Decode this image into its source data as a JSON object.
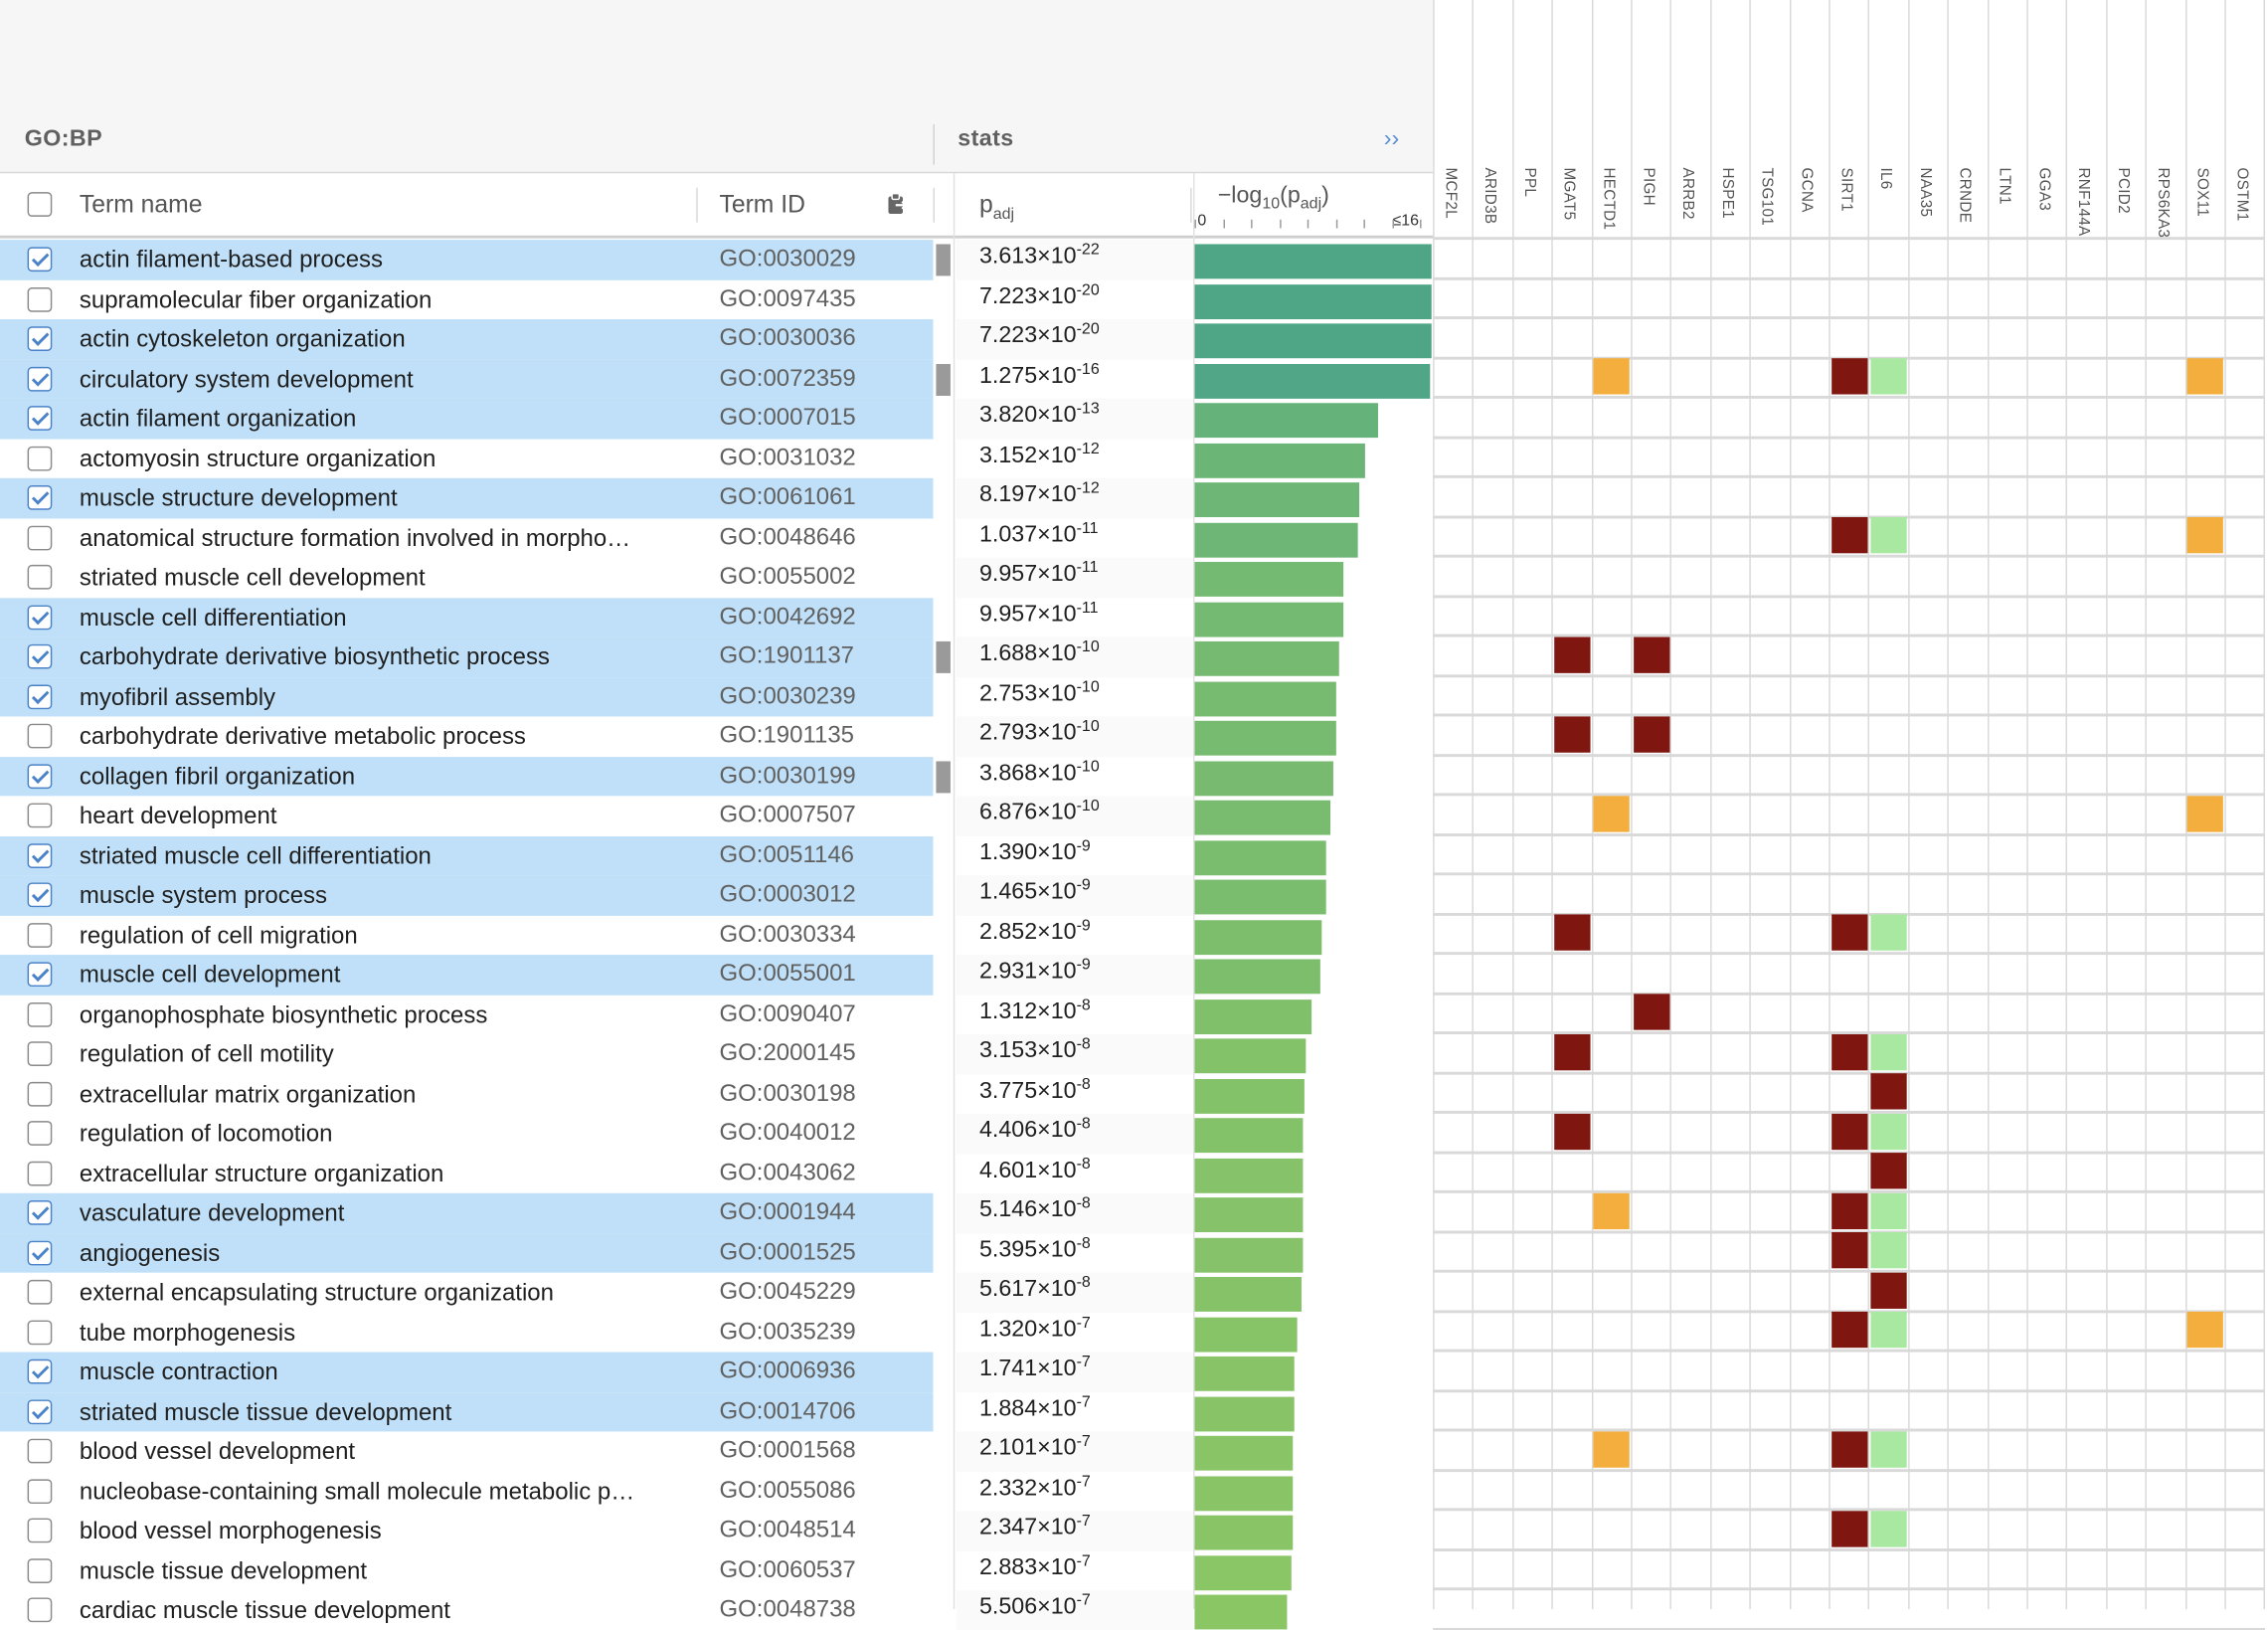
{
  "headers": {
    "group_title": "GO:BP",
    "stats_title": "stats",
    "expand_glyph": "››",
    "term_name": "Term name",
    "term_id": "Term ID",
    "padj_base": "p",
    "padj_sub": "adj",
    "log_prefix": "−log",
    "log_sub": "10",
    "log_mid": "(p",
    "log_sub2": "adj",
    "log_suffix": ")",
    "axis_min": "0",
    "axis_max": "≤16"
  },
  "colors": {
    "selected_row": "#bfe0f8",
    "dark_red": "#7f1710",
    "orange": "#f3ae3e",
    "light_green": "#a8e8a0"
  },
  "genes": [
    "MCF2L",
    "ARID3B",
    "PPL",
    "MGAT5",
    "HECTD1",
    "PIGH",
    "ARRB2",
    "HSPE1",
    "TSG101",
    "GCNA",
    "SIRT1",
    "IL6",
    "NAA35",
    "CRNDE",
    "LTN1",
    "GGA3",
    "RNF144A",
    "PCID2",
    "RPS6KA3",
    "SOX11",
    "OSTM1"
  ],
  "rows": [
    {
      "term": "actin filament-based process",
      "id": "GO:0030029",
      "mant": "3.613×10",
      "exp": "-22",
      "logp": 21.44,
      "sel": true,
      "marker": true,
      "cells": []
    },
    {
      "term": "supramolecular fiber organization",
      "id": "GO:0097435",
      "mant": "7.223×10",
      "exp": "-20",
      "logp": 19.14,
      "sel": false,
      "marker": false,
      "cells": []
    },
    {
      "term": "actin cytoskeleton organization",
      "id": "GO:0030036",
      "mant": "7.223×10",
      "exp": "-20",
      "logp": 19.14,
      "sel": true,
      "marker": false,
      "cells": []
    },
    {
      "term": "circulatory system development",
      "id": "GO:0072359",
      "mant": "1.275×10",
      "exp": "-16",
      "logp": 15.89,
      "sel": true,
      "marker": true,
      "cells": [
        [
          4,
          "o"
        ],
        [
          10,
          "r"
        ],
        [
          11,
          "g"
        ],
        [
          19,
          "o"
        ]
      ]
    },
    {
      "term": "actin filament organization",
      "id": "GO:0007015",
      "mant": "3.820×10",
      "exp": "-13",
      "logp": 12.42,
      "sel": true,
      "marker": false,
      "cells": []
    },
    {
      "term": "actomyosin structure organization",
      "id": "GO:0031032",
      "mant": "3.152×10",
      "exp": "-12",
      "logp": 11.5,
      "sel": false,
      "marker": false,
      "cells": []
    },
    {
      "term": "muscle structure development",
      "id": "GO:0061061",
      "mant": "8.197×10",
      "exp": "-12",
      "logp": 11.09,
      "sel": true,
      "marker": false,
      "cells": []
    },
    {
      "term": "anatomical structure formation involved in morpho…",
      "id": "GO:0048646",
      "mant": "1.037×10",
      "exp": "-11",
      "logp": 10.98,
      "sel": false,
      "marker": false,
      "cells": [
        [
          10,
          "r"
        ],
        [
          11,
          "g"
        ],
        [
          19,
          "o"
        ]
      ]
    },
    {
      "term": "striated muscle cell development",
      "id": "GO:0055002",
      "mant": "9.957×10",
      "exp": "-11",
      "logp": 10.0,
      "sel": false,
      "marker": false,
      "cells": []
    },
    {
      "term": "muscle cell differentiation",
      "id": "GO:0042692",
      "mant": "9.957×10",
      "exp": "-11",
      "logp": 10.0,
      "sel": true,
      "marker": false,
      "cells": []
    },
    {
      "term": "carbohydrate derivative biosynthetic process",
      "id": "GO:1901137",
      "mant": "1.688×10",
      "exp": "-10",
      "logp": 9.77,
      "sel": true,
      "marker": true,
      "cells": [
        [
          3,
          "r"
        ],
        [
          5,
          "r"
        ]
      ]
    },
    {
      "term": "myofibril assembly",
      "id": "GO:0030239",
      "mant": "2.753×10",
      "exp": "-10",
      "logp": 9.56,
      "sel": true,
      "marker": false,
      "cells": []
    },
    {
      "term": "carbohydrate derivative metabolic process",
      "id": "GO:1901135",
      "mant": "2.793×10",
      "exp": "-10",
      "logp": 9.55,
      "sel": false,
      "marker": false,
      "cells": [
        [
          3,
          "r"
        ],
        [
          5,
          "r"
        ]
      ]
    },
    {
      "term": "collagen fibril organization",
      "id": "GO:0030199",
      "mant": "3.868×10",
      "exp": "-10",
      "logp": 9.41,
      "sel": true,
      "marker": true,
      "cells": []
    },
    {
      "term": "heart development",
      "id": "GO:0007507",
      "mant": "6.876×10",
      "exp": "-10",
      "logp": 9.16,
      "sel": false,
      "marker": false,
      "cells": [
        [
          4,
          "o"
        ],
        [
          19,
          "o"
        ]
      ]
    },
    {
      "term": "striated muscle cell differentiation",
      "id": "GO:0051146",
      "mant": "1.390×10",
      "exp": "-9",
      "logp": 8.86,
      "sel": true,
      "marker": false,
      "cells": []
    },
    {
      "term": "muscle system process",
      "id": "GO:0003012",
      "mant": "1.465×10",
      "exp": "-9",
      "logp": 8.83,
      "sel": true,
      "marker": false,
      "cells": []
    },
    {
      "term": "regulation of cell migration",
      "id": "GO:0030334",
      "mant": "2.852×10",
      "exp": "-9",
      "logp": 8.54,
      "sel": false,
      "marker": false,
      "cells": [
        [
          3,
          "r"
        ],
        [
          10,
          "r"
        ],
        [
          11,
          "g"
        ]
      ]
    },
    {
      "term": "muscle cell development",
      "id": "GO:0055001",
      "mant": "2.931×10",
      "exp": "-9",
      "logp": 8.53,
      "sel": true,
      "marker": false,
      "cells": []
    },
    {
      "term": "organophosphate biosynthetic process",
      "id": "GO:0090407",
      "mant": "1.312×10",
      "exp": "-8",
      "logp": 7.88,
      "sel": false,
      "marker": false,
      "cells": [
        [
          5,
          "r"
        ]
      ]
    },
    {
      "term": "regulation of cell motility",
      "id": "GO:2000145",
      "mant": "3.153×10",
      "exp": "-8",
      "logp": 7.5,
      "sel": false,
      "marker": false,
      "cells": [
        [
          3,
          "r"
        ],
        [
          10,
          "r"
        ],
        [
          11,
          "g"
        ]
      ]
    },
    {
      "term": "extracellular matrix organization",
      "id": "GO:0030198",
      "mant": "3.775×10",
      "exp": "-8",
      "logp": 7.42,
      "sel": false,
      "marker": false,
      "cells": [
        [
          11,
          "r"
        ]
      ]
    },
    {
      "term": "regulation of locomotion",
      "id": "GO:0040012",
      "mant": "4.406×10",
      "exp": "-8",
      "logp": 7.36,
      "sel": false,
      "marker": false,
      "cells": [
        [
          3,
          "r"
        ],
        [
          10,
          "r"
        ],
        [
          11,
          "g"
        ]
      ]
    },
    {
      "term": "extracellular structure organization",
      "id": "GO:0043062",
      "mant": "4.601×10",
      "exp": "-8",
      "logp": 7.34,
      "sel": false,
      "marker": false,
      "cells": [
        [
          11,
          "r"
        ]
      ]
    },
    {
      "term": "vasculature development",
      "id": "GO:0001944",
      "mant": "5.146×10",
      "exp": "-8",
      "logp": 7.29,
      "sel": true,
      "marker": false,
      "cells": [
        [
          4,
          "o"
        ],
        [
          10,
          "r"
        ],
        [
          11,
          "g"
        ]
      ]
    },
    {
      "term": "angiogenesis",
      "id": "GO:0001525",
      "mant": "5.395×10",
      "exp": "-8",
      "logp": 7.27,
      "sel": true,
      "marker": false,
      "cells": [
        [
          10,
          "r"
        ],
        [
          11,
          "g"
        ]
      ]
    },
    {
      "term": "external encapsulating structure organization",
      "id": "GO:0045229",
      "mant": "5.617×10",
      "exp": "-8",
      "logp": 7.25,
      "sel": false,
      "marker": false,
      "cells": [
        [
          11,
          "r"
        ]
      ]
    },
    {
      "term": "tube morphogenesis",
      "id": "GO:0035239",
      "mant": "1.320×10",
      "exp": "-7",
      "logp": 6.88,
      "sel": false,
      "marker": false,
      "cells": [
        [
          10,
          "r"
        ],
        [
          11,
          "g"
        ],
        [
          19,
          "o"
        ]
      ]
    },
    {
      "term": "muscle contraction",
      "id": "GO:0006936",
      "mant": "1.741×10",
      "exp": "-7",
      "logp": 6.76,
      "sel": true,
      "marker": false,
      "cells": []
    },
    {
      "term": "striated muscle tissue development",
      "id": "GO:0014706",
      "mant": "1.884×10",
      "exp": "-7",
      "logp": 6.72,
      "sel": true,
      "marker": false,
      "cells": []
    },
    {
      "term": "blood vessel development",
      "id": "GO:0001568",
      "mant": "2.101×10",
      "exp": "-7",
      "logp": 6.68,
      "sel": false,
      "marker": false,
      "cells": [
        [
          4,
          "o"
        ],
        [
          10,
          "r"
        ],
        [
          11,
          "g"
        ]
      ]
    },
    {
      "term": "nucleobase-containing small molecule metabolic p…",
      "id": "GO:0055086",
      "mant": "2.332×10",
      "exp": "-7",
      "logp": 6.63,
      "sel": false,
      "marker": false,
      "cells": []
    },
    {
      "term": "blood vessel morphogenesis",
      "id": "GO:0048514",
      "mant": "2.347×10",
      "exp": "-7",
      "logp": 6.63,
      "sel": false,
      "marker": false,
      "cells": [
        [
          10,
          "r"
        ],
        [
          11,
          "g"
        ]
      ]
    },
    {
      "term": "muscle tissue development",
      "id": "GO:0060537",
      "mant": "2.883×10",
      "exp": "-7",
      "logp": 6.54,
      "sel": false,
      "marker": false,
      "cells": []
    },
    {
      "term": "cardiac muscle tissue development",
      "id": "GO:0048738",
      "mant": "5.506×10",
      "exp": "-7",
      "logp": 6.26,
      "sel": false,
      "marker": false,
      "cells": []
    }
  ]
}
